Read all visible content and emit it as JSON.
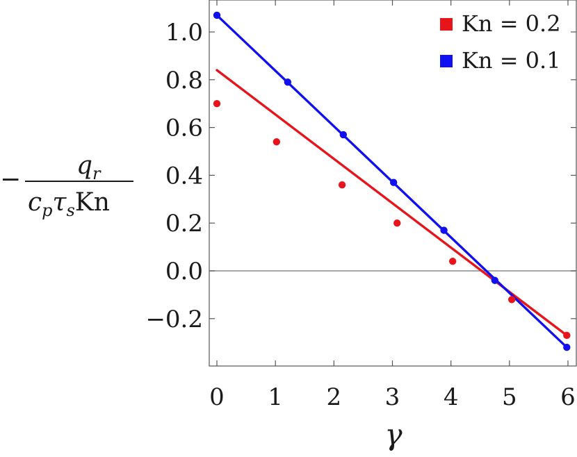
{
  "chart_data": {
    "type": "scatter",
    "title": "",
    "xlabel": "γ",
    "ylabel": {
      "sign": "−",
      "numerator": {
        "main": "q",
        "sub": "r"
      },
      "denominator": [
        {
          "main": "c",
          "sub": "p"
        },
        {
          "main": "τ",
          "sub": "s"
        },
        {
          "main": "Kn",
          "sub": ""
        }
      ]
    },
    "xlim": [
      -0.1,
      6.0
    ],
    "ylim": [
      -0.4,
      1.12
    ],
    "xticks": [
      0,
      1,
      2,
      3,
      4,
      5,
      6
    ],
    "yticks": [
      -0.2,
      0.0,
      0.2,
      0.4,
      0.6,
      0.8,
      1.0
    ],
    "ytick_labels": [
      "−0.2",
      "0.0",
      "0.2",
      "0.4",
      "0.6",
      "0.8",
      "1.0"
    ],
    "grid": false,
    "zero_line": true,
    "legend_position": "top-right",
    "series": [
      {
        "name": "Kn = 0.2",
        "color": "#e8141c",
        "points": [
          {
            "x": 0.0,
            "y": 0.7
          },
          {
            "x": 1.02,
            "y": 0.54
          },
          {
            "x": 2.14,
            "y": 0.36
          },
          {
            "x": 3.08,
            "y": 0.2
          },
          {
            "x": 4.03,
            "y": 0.04
          },
          {
            "x": 5.04,
            "y": -0.12
          },
          {
            "x": 5.98,
            "y": -0.27
          }
        ],
        "fit_line": {
          "x": [
            0.0,
            5.98
          ],
          "y": [
            0.84,
            -0.27
          ]
        }
      },
      {
        "name": "Kn = 0.1",
        "color": "#1010f0",
        "points": [
          {
            "x": 0.0,
            "y": 1.07
          },
          {
            "x": 1.21,
            "y": 0.79
          },
          {
            "x": 2.16,
            "y": 0.57
          },
          {
            "x": 3.02,
            "y": 0.37
          },
          {
            "x": 3.88,
            "y": 0.17
          },
          {
            "x": 4.75,
            "y": -0.04
          },
          {
            "x": 5.98,
            "y": -0.32
          }
        ],
        "fit_line": {
          "x": [
            0.0,
            5.98
          ],
          "y": [
            1.07,
            -0.32
          ]
        }
      }
    ]
  }
}
